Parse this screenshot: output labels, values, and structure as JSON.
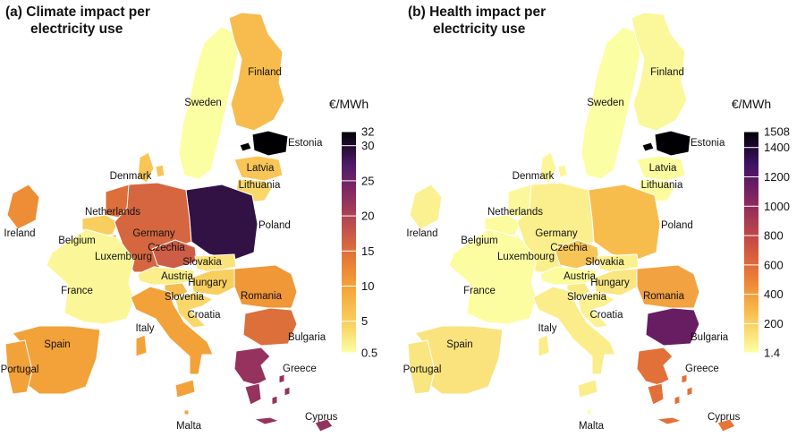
{
  "panels": [
    {
      "title_line1": "(a) Climate impact per",
      "title_line2": "electricity use",
      "unit": "€/MWh",
      "scale": {
        "min": 0.5,
        "max": 32,
        "ticks": [
          {
            "label": "32",
            "value": 32
          },
          {
            "label": "30",
            "value": 30
          },
          {
            "label": "25",
            "value": 25
          },
          {
            "label": "20",
            "value": 20
          },
          {
            "label": "15",
            "value": 15
          },
          {
            "label": "10",
            "value": 10
          },
          {
            "label": "5",
            "value": 5
          },
          {
            "label": "0.5",
            "value": 0.5
          }
        ]
      },
      "values": {
        "Sweden": 0.6,
        "Finland": 7,
        "Estonia": 32,
        "Latvia": 6,
        "Lithuania": 4,
        "Denmark": 6,
        "Ireland": 12,
        "Netherlands": 15,
        "Belgium": 5,
        "Luxembourg": 7,
        "Germany": 16,
        "Poland": 29,
        "Czechia": 17,
        "Slovakia": 3,
        "Austria": 2,
        "Hungary": 5,
        "Slovenia": 7,
        "Croatia": 4,
        "Romania": 11,
        "Bulgaria": 15,
        "France": 1.2,
        "Spain": 10,
        "Portugal": 10,
        "Italy": 10,
        "Greece": 22,
        "Cyprus": 22,
        "Malta": 10
      }
    },
    {
      "title_line1": "(b) Health impact per",
      "title_line2": "electricity use",
      "unit": "€/MWh",
      "scale": {
        "min": 1.4,
        "max": 1508,
        "ticks": [
          {
            "label": "1508",
            "value": 1508
          },
          {
            "label": "1400",
            "value": 1400
          },
          {
            "label": "1200",
            "value": 1200
          },
          {
            "label": "1000",
            "value": 1000
          },
          {
            "label": "800",
            "value": 800
          },
          {
            "label": "600",
            "value": 600
          },
          {
            "label": "400",
            "value": 400
          },
          {
            "label": "200",
            "value": 200
          },
          {
            "label": "1.4",
            "value": 1.4
          }
        ]
      },
      "values": {
        "Sweden": 5,
        "Finland": 30,
        "Estonia": 1508,
        "Latvia": 20,
        "Lithuania": 15,
        "Denmark": 40,
        "Ireland": 60,
        "Netherlands": 30,
        "Belgium": 20,
        "Luxembourg": 20,
        "Germany": 70,
        "Poland": 280,
        "Czechia": 250,
        "Slovakia": 60,
        "Austria": 20,
        "Hungary": 110,
        "Slovenia": 90,
        "Croatia": 60,
        "Romania": 380,
        "Bulgaria": 1150,
        "France": 10,
        "Spain": 120,
        "Portugal": 110,
        "Italy": 80,
        "Greece": 580,
        "Cyprus": 550,
        "Malta": 5
      }
    }
  ],
  "labels": [
    "Finland",
    "Sweden",
    "Estonia",
    "Latvia",
    "Lithuania",
    "Denmark",
    "Netherlands",
    "Ireland",
    "Belgium",
    "Germany",
    "Poland",
    "Luxembourg",
    "Czechia",
    "Slovakia",
    "France",
    "Austria",
    "Hungary",
    "Slovenia",
    "Romania",
    "Croatia",
    "Italy",
    "Bulgaria",
    "Spain",
    "Portugal",
    "Greece",
    "Cyprus",
    "Malta"
  ]
}
